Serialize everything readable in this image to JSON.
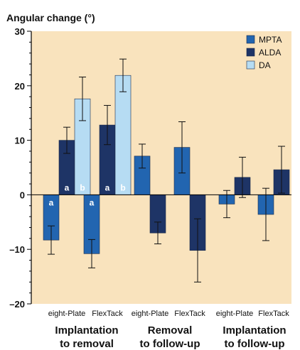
{
  "colors": {
    "panel": "#f9e3bd",
    "MPTA": "#2265b0",
    "ALDA": "#1e3466",
    "DA": "#b6dcf3",
    "axis": "#000000"
  },
  "chart_data": {
    "type": "bar",
    "ylabel": "Angular change (°)",
    "ylim": [
      -20,
      30
    ],
    "yticks": [
      30,
      20,
      10,
      0,
      -10,
      -20
    ],
    "ytick_labels": [
      "30",
      "20",
      "10",
      "0",
      "–10",
      "–20"
    ],
    "legend_position": "top-right",
    "grid": false,
    "groups": [
      {
        "label_line1": "Implantation",
        "label_line2": "to removal"
      },
      {
        "label_line1": "Removal",
        "label_line2": "to follow-up"
      },
      {
        "label_line1": "Implantation",
        "label_line2": "to follow-up"
      }
    ],
    "categories": [
      "eight-Plate",
      "FlexTack",
      "eight-Plate",
      "FlexTack",
      "eight-Plate",
      "FlexTack"
    ],
    "series": [
      {
        "name": "MPTA",
        "values": [
          -8.3,
          -10.8,
          7.1,
          8.7,
          -1.7,
          -3.6
        ],
        "errors": [
          2.6,
          2.6,
          2.2,
          4.7,
          2.5,
          4.8
        ]
      },
      {
        "name": "ALDA",
        "values": [
          10.0,
          12.8,
          -7.0,
          -10.2,
          3.2,
          4.6
        ],
        "errors": [
          2.4,
          3.6,
          2.0,
          5.8,
          3.7,
          4.3
        ]
      },
      {
        "name": "DA",
        "values": [
          17.6,
          21.9,
          null,
          null,
          null,
          null
        ],
        "errors": [
          4.0,
          3.0,
          null,
          null,
          null,
          null
        ]
      }
    ],
    "annotations": [
      {
        "text": "a",
        "series": "MPTA",
        "category_index": 0
      },
      {
        "text": "a",
        "series": "ALDA",
        "category_index": 0
      },
      {
        "text": "b",
        "series": "DA",
        "category_index": 0
      },
      {
        "text": "a",
        "series": "MPTA",
        "category_index": 1
      },
      {
        "text": "a",
        "series": "ALDA",
        "category_index": 1
      },
      {
        "text": "b",
        "series": "DA",
        "category_index": 1
      }
    ]
  }
}
